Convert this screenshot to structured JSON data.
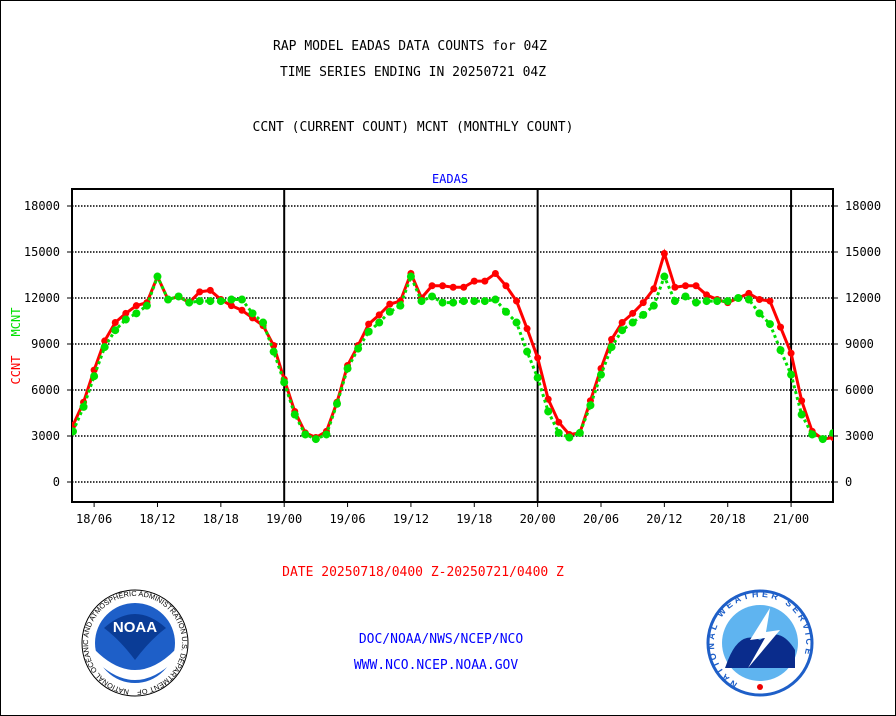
{
  "header": {
    "title1": "RAP MODEL EADAS DATA COUNTS for 04Z",
    "title2": "TIME SERIES ENDING IN 20250721 04Z",
    "subtitle": "CCNT (CURRENT COUNT) MCNT (MONTHLY COUNT)"
  },
  "footer": {
    "date_range": "DATE 20250718/0400 Z-20250721/0400 Z",
    "org_path": "DOC/NOAA/NWS/NCEP/NCO",
    "website": "WWW.NCO.NCEP.NOAA.GOV",
    "noaa_logo_text": "NOAA",
    "noaa_ring_text": "NATIONAL OCEANIC AND ATMOSPHERIC ADMINISTRATION U.S. DEPARTMENT OF COMMERCE",
    "nws_ring_text": "NATIONAL WEATHER SERVICE"
  },
  "colors": {
    "ccnt": "#ff0000",
    "mcnt": "#00e000",
    "title": "#0000ff"
  },
  "chart_data": {
    "type": "line",
    "title": "EADAS",
    "ylabel_series": [
      "CCNT",
      "MCNT"
    ],
    "ylim": [
      -1500,
      19000
    ],
    "yticks": [
      0,
      3000,
      6000,
      9000,
      12000,
      15000,
      18000
    ],
    "x_start": "18/04",
    "x_step_hours": 1,
    "xticks": [
      {
        "label": "18/06",
        "hour": 2
      },
      {
        "label": "18/12",
        "hour": 8
      },
      {
        "label": "18/18",
        "hour": 14
      },
      {
        "label": "19/00",
        "hour": 20
      },
      {
        "label": "19/06",
        "hour": 26
      },
      {
        "label": "19/12",
        "hour": 32
      },
      {
        "label": "19/18",
        "hour": 38
      },
      {
        "label": "20/00",
        "hour": 44
      },
      {
        "label": "20/06",
        "hour": 50
      },
      {
        "label": "20/12",
        "hour": 56
      },
      {
        "label": "20/18",
        "hour": 62
      },
      {
        "label": "21/00",
        "hour": 68
      }
    ],
    "day_boundaries_hours": [
      20,
      44,
      68
    ],
    "xlim_hours": [
      0,
      72
    ],
    "series": [
      {
        "name": "CCNT",
        "color": "#ff0000",
        "values": [
          3700,
          5200,
          7300,
          9200,
          10400,
          11000,
          11500,
          11700,
          13400,
          11900,
          12100,
          11700,
          12400,
          12500,
          11900,
          11500,
          11200,
          10700,
          10200,
          8900,
          6700,
          4600,
          3200,
          2900,
          3300,
          5200,
          7600,
          8900,
          10300,
          10900,
          11600,
          11800,
          13600,
          12000,
          12800,
          12800,
          12700,
          12700,
          13100,
          13100,
          13600,
          12800,
          11800,
          10000,
          8100,
          5400,
          3900,
          3100,
          3200,
          5300,
          7400,
          9300,
          10400,
          11000,
          11700,
          12600,
          14900,
          12700,
          12800,
          12800,
          12200,
          11900,
          11700,
          12000,
          12300,
          11900,
          11800,
          10100,
          8400,
          5300,
          3300,
          2800,
          2900
        ]
      },
      {
        "name": "MCNT",
        "color": "#00e000",
        "values": [
          3300,
          4900,
          6900,
          8800,
          9900,
          10600,
          11000,
          11500,
          13400,
          11900,
          12100,
          11700,
          11800,
          11800,
          11800,
          11900,
          11900,
          11000,
          10400,
          8500,
          6500,
          4400,
          3100,
          2800,
          3100,
          5100,
          7400,
          8700,
          9800,
          10400,
          11100,
          11500,
          13400,
          11800,
          12100,
          11700,
          11700,
          11800,
          11800,
          11800,
          11900,
          11100,
          10400,
          8500,
          6800,
          4600,
          3200,
          2900,
          3200,
          5000,
          7000,
          8800,
          9900,
          10400,
          10900,
          11500,
          13400,
          11800,
          12100,
          11700,
          11800,
          11800,
          11800,
          12000,
          11900,
          11000,
          10300,
          8600,
          7000,
          4400,
          3100,
          2800,
          3200
        ]
      }
    ]
  }
}
